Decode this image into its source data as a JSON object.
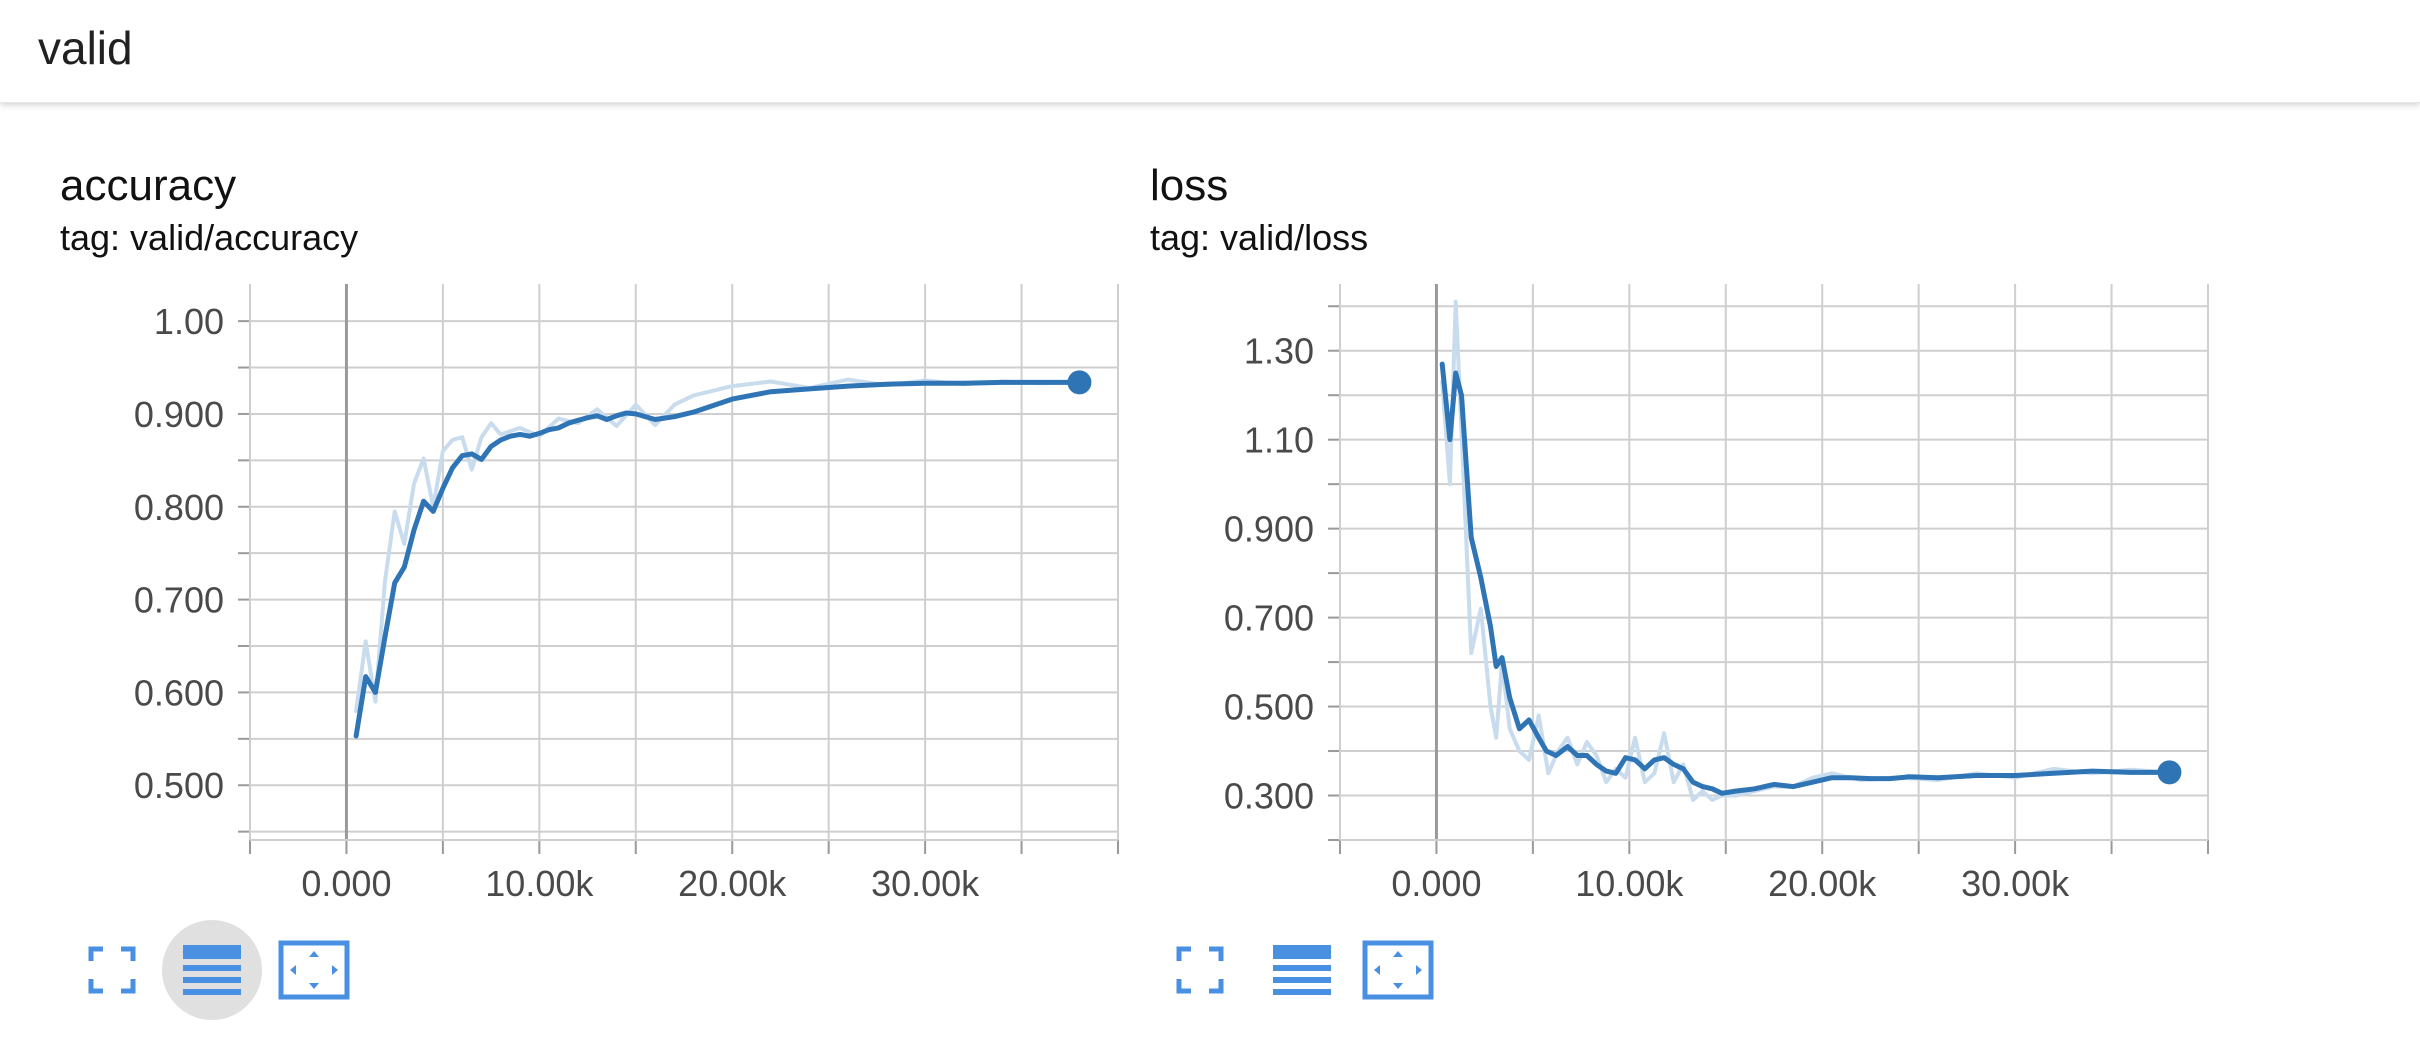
{
  "header": {
    "title": "valid"
  },
  "colors": {
    "line": "#2f75b5",
    "raw": "#c8dcee",
    "grid": "#cfcfcf",
    "axis": "#9a9a9a",
    "tick_text": "#4a4a4a",
    "icon": "#4a90e2"
  },
  "cards": [
    {
      "title": "accuracy",
      "tag": "tag: valid/accuracy"
    },
    {
      "title": "loss",
      "tag": "tag: valid/loss"
    }
  ],
  "toolbar_icons": [
    "fullscreen-icon",
    "data-table-icon",
    "fit-domain-icon"
  ],
  "chart_data": [
    {
      "type": "line",
      "title": "accuracy",
      "subtitle": "tag: valid/accuracy",
      "xlabel": "",
      "ylabel": "",
      "xlim": [
        -5000,
        40000
      ],
      "ylim": [
        0.441,
        1.04
      ],
      "x_ticks": [
        0,
        10000,
        20000,
        30000
      ],
      "x_tick_labels": [
        "0.000",
        "10.00k",
        "20.00k",
        "30.00k"
      ],
      "y_ticks": [
        0.5,
        0.6,
        0.7,
        0.8,
        0.9,
        1.0
      ],
      "y_tick_labels": [
        "0.500",
        "0.600",
        "0.700",
        "0.800",
        "0.900",
        "1.00"
      ],
      "grid": true,
      "series": [
        {
          "role": "smoothed",
          "x": [
            500,
            1000,
            1500,
            2000,
            2500,
            3000,
            3500,
            4000,
            4500,
            5000,
            5500,
            6000,
            6500,
            7000,
            7500,
            8000,
            8500,
            9000,
            9500,
            10000,
            10500,
            11000,
            11500,
            12000,
            12500,
            13000,
            13500,
            14000,
            14500,
            15000,
            16000,
            17000,
            18000,
            20000,
            22000,
            24000,
            26000,
            28000,
            30000,
            32000,
            34000,
            36000,
            38000
          ],
          "y": [
            0.553,
            0.617,
            0.6,
            0.66,
            0.718,
            0.735,
            0.775,
            0.806,
            0.795,
            0.82,
            0.842,
            0.855,
            0.857,
            0.851,
            0.865,
            0.872,
            0.876,
            0.878,
            0.876,
            0.879,
            0.883,
            0.885,
            0.89,
            0.893,
            0.896,
            0.898,
            0.894,
            0.898,
            0.901,
            0.9,
            0.894,
            0.897,
            0.902,
            0.916,
            0.924,
            0.927,
            0.93,
            0.932,
            0.933,
            0.933,
            0.934,
            0.934,
            0.934
          ]
        },
        {
          "role": "raw",
          "x": [
            500,
            1000,
            1500,
            2000,
            2500,
            3000,
            3500,
            4000,
            4500,
            5000,
            5500,
            6000,
            6500,
            7000,
            7500,
            8000,
            9000,
            10000,
            11000,
            12000,
            13000,
            14000,
            15000,
            16000,
            17000,
            18000,
            20000,
            22000,
            24000,
            26000,
            28000,
            30000,
            32000,
            34000,
            36000,
            38000
          ],
          "y": [
            0.58,
            0.655,
            0.59,
            0.72,
            0.795,
            0.76,
            0.825,
            0.852,
            0.8,
            0.86,
            0.872,
            0.875,
            0.84,
            0.875,
            0.89,
            0.878,
            0.885,
            0.876,
            0.895,
            0.89,
            0.905,
            0.887,
            0.91,
            0.888,
            0.91,
            0.92,
            0.93,
            0.935,
            0.928,
            0.937,
            0.931,
            0.936,
            0.932,
            0.935,
            0.933,
            0.934
          ]
        }
      ]
    },
    {
      "type": "line",
      "title": "loss",
      "subtitle": "tag: valid/loss",
      "xlabel": "",
      "ylabel": "",
      "xlim": [
        -5000,
        40000
      ],
      "ylim": [
        0.2,
        1.45
      ],
      "x_ticks": [
        0,
        10000,
        20000,
        30000
      ],
      "x_tick_labels": [
        "0.000",
        "10.00k",
        "20.00k",
        "30.00k"
      ],
      "y_ticks": [
        0.3,
        0.5,
        0.7,
        0.9,
        1.1,
        1.3
      ],
      "y_tick_labels": [
        "0.300",
        "0.500",
        "0.700",
        "0.900",
        "1.10",
        "1.30"
      ],
      "grid": true,
      "series": [
        {
          "role": "smoothed",
          "x": [
            300,
            700,
            1000,
            1300,
            1800,
            2300,
            2800,
            3100,
            3400,
            3800,
            4300,
            4800,
            5300,
            5700,
            6200,
            6800,
            7300,
            7800,
            8300,
            8800,
            9300,
            9800,
            10300,
            10800,
            11300,
            11800,
            12300,
            12800,
            13300,
            13800,
            14300,
            14800,
            15500,
            16500,
            17500,
            18500,
            19500,
            20500,
            21500,
            22500,
            23500,
            24500,
            26000,
            28000,
            30000,
            32000,
            34000,
            36000,
            38000
          ],
          "y": [
            1.27,
            1.1,
            1.25,
            1.2,
            0.88,
            0.79,
            0.68,
            0.59,
            0.61,
            0.52,
            0.45,
            0.47,
            0.43,
            0.4,
            0.39,
            0.41,
            0.39,
            0.39,
            0.37,
            0.355,
            0.35,
            0.385,
            0.38,
            0.36,
            0.38,
            0.385,
            0.37,
            0.36,
            0.33,
            0.32,
            0.315,
            0.305,
            0.31,
            0.315,
            0.325,
            0.32,
            0.33,
            0.34,
            0.34,
            0.338,
            0.338,
            0.342,
            0.34,
            0.345,
            0.345,
            0.35,
            0.355,
            0.352,
            0.352
          ]
        },
        {
          "role": "raw",
          "x": [
            300,
            700,
            1000,
            1300,
            1800,
            2300,
            2800,
            3100,
            3400,
            3800,
            4300,
            4800,
            5300,
            5800,
            6300,
            6800,
            7300,
            7800,
            8300,
            8800,
            9300,
            9800,
            10300,
            10800,
            11300,
            11800,
            12300,
            12800,
            13300,
            13800,
            14300,
            14800,
            15500,
            16500,
            17500,
            18500,
            19500,
            20500,
            22000,
            24000,
            26000,
            28000,
            30000,
            32000,
            34000,
            36000,
            38000
          ],
          "y": [
            1.23,
            1.0,
            1.41,
            1.12,
            0.62,
            0.72,
            0.5,
            0.43,
            0.6,
            0.45,
            0.4,
            0.38,
            0.48,
            0.35,
            0.4,
            0.43,
            0.37,
            0.42,
            0.39,
            0.33,
            0.36,
            0.34,
            0.43,
            0.33,
            0.35,
            0.44,
            0.33,
            0.37,
            0.29,
            0.31,
            0.29,
            0.3,
            0.3,
            0.31,
            0.32,
            0.32,
            0.34,
            0.35,
            0.335,
            0.34,
            0.335,
            0.35,
            0.34,
            0.36,
            0.35,
            0.358,
            0.352
          ]
        }
      ]
    }
  ]
}
